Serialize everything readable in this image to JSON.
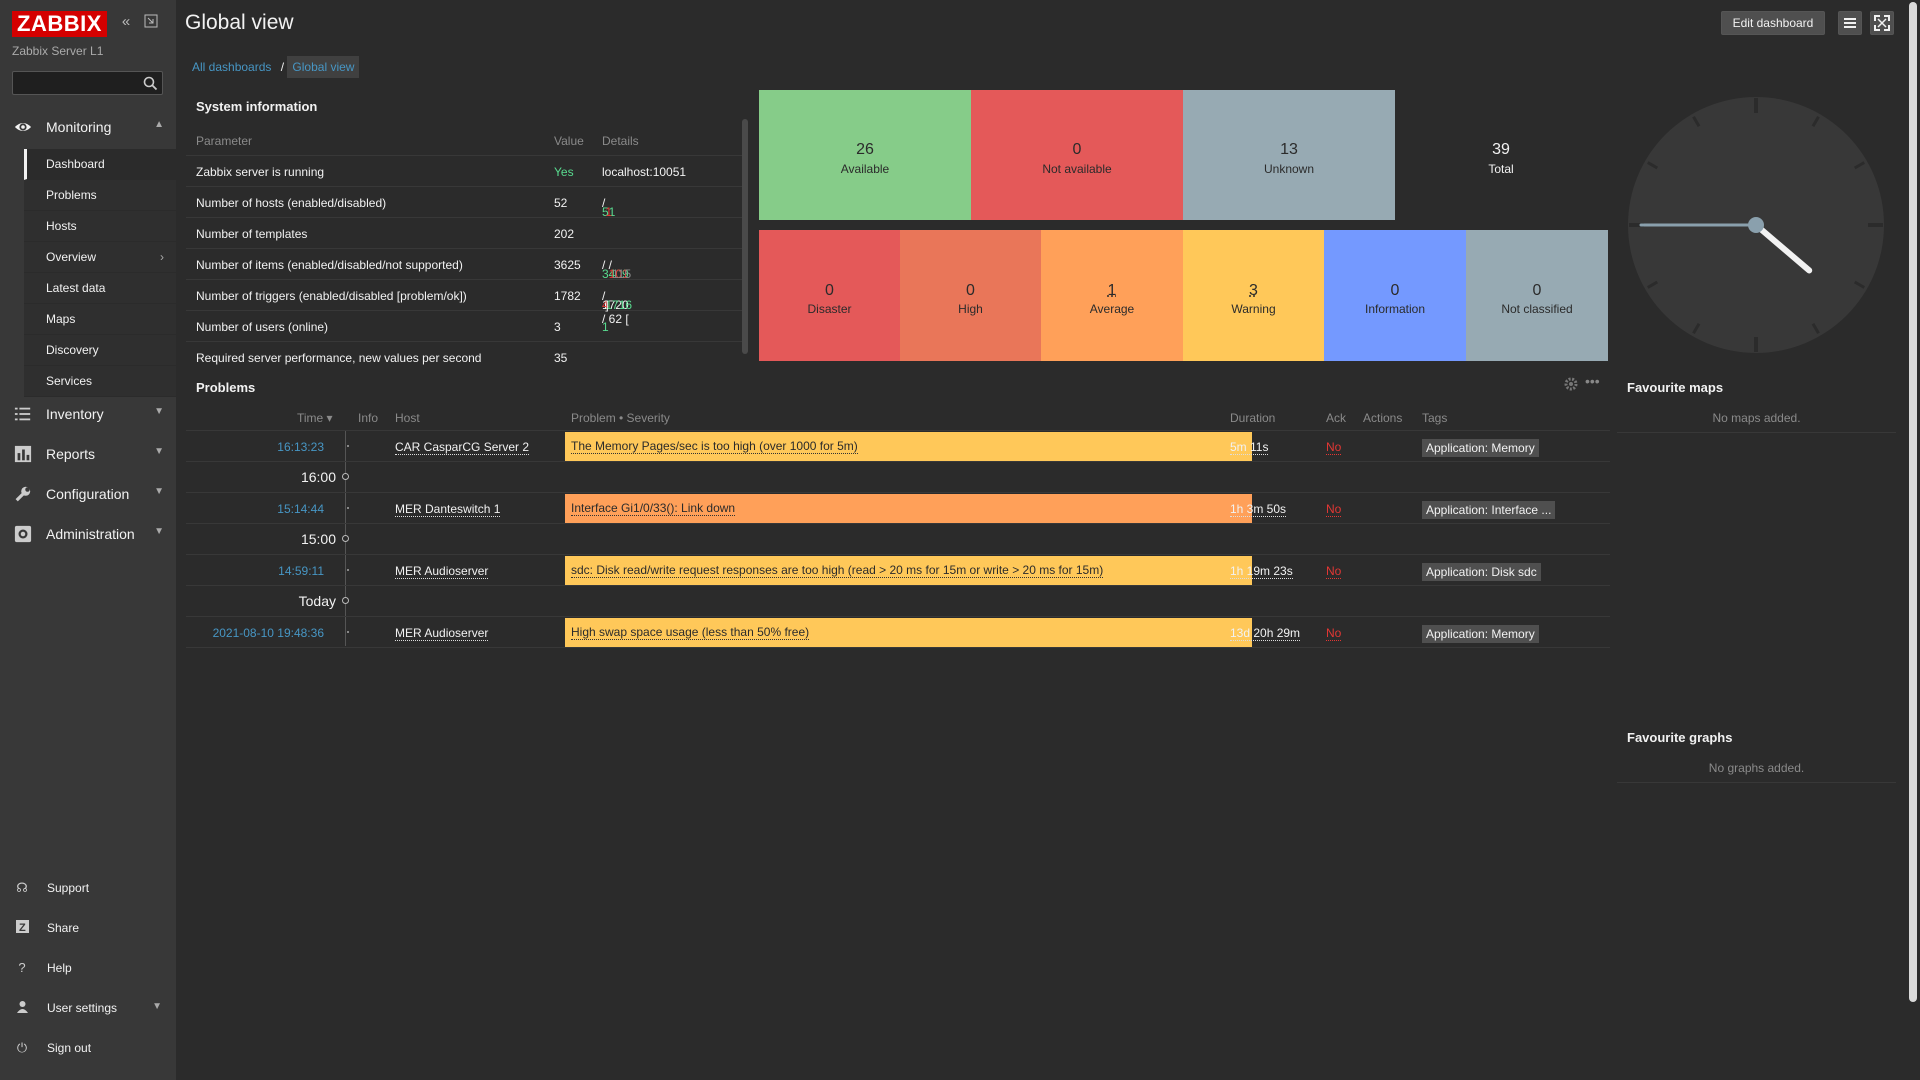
{
  "sidebar": {
    "logo": "ZABBIX",
    "server_name": "Zabbix Server L1",
    "monitoring": "Monitoring",
    "submenu": [
      "Dashboard",
      "Problems",
      "Hosts",
      "Overview",
      "Latest data",
      "Maps",
      "Discovery",
      "Services"
    ],
    "inventory": "Inventory",
    "reports": "Reports",
    "configuration": "Configuration",
    "administration": "Administration",
    "support": "Support",
    "share": "Share",
    "help": "Help",
    "user_settings": "User settings",
    "sign_out": "Sign out"
  },
  "header": {
    "title": "Global view",
    "edit_button": "Edit dashboard"
  },
  "breadcrumb": {
    "all": "All dashboards",
    "separator": "/",
    "current": "Global view"
  },
  "system_info": {
    "title": "System information",
    "headers": {
      "parameter": "Parameter",
      "value": "Value",
      "details": "Details"
    },
    "rows": [
      {
        "param": "Zabbix server is running",
        "value": "Yes",
        "details": "localhost:10051"
      },
      {
        "param": "Number of hosts (enabled/disabled)",
        "value": "52",
        "d1": "51",
        "sep": " / ",
        "d2": "1"
      },
      {
        "param": "Number of templates",
        "value": "202"
      },
      {
        "param": "Number of items (enabled/disabled/not supported)",
        "value": "3625",
        "d1": "3409",
        "d2": "101",
        "d3": "115"
      },
      {
        "param": "Number of triggers (enabled/disabled [problem/ok])",
        "value": "1782",
        "d1": "1720 / 62 [",
        "d2": "4",
        "d3": "1716",
        "d4": "]"
      },
      {
        "param": "Number of users (online)",
        "value": "3",
        "d1": "1"
      },
      {
        "param": "Required server performance, new values per second",
        "value": "35"
      }
    ]
  },
  "host_availability": [
    {
      "num": "26",
      "label": "Available",
      "color": "#86cc89"
    },
    {
      "num": "0",
      "label": "Not available",
      "color": "#e45959"
    },
    {
      "num": "13",
      "label": "Unknown",
      "color": "#97aab3"
    },
    {
      "num": "39",
      "label": "Total",
      "color": "#2b2b2b"
    }
  ],
  "problems_by_severity": [
    {
      "num": "0",
      "label": "Disaster",
      "color": "#e45959"
    },
    {
      "num": "0",
      "label": "High",
      "color": "#e97659"
    },
    {
      "num": "1",
      "label": "Average",
      "color": "#ffa059"
    },
    {
      "num": "3",
      "label": "Warning",
      "color": "#ffc859"
    },
    {
      "num": "0",
      "label": "Information",
      "color": "#7499ff"
    },
    {
      "num": "0",
      "label": "Not classified",
      "color": "#97aab3"
    }
  ],
  "problems": {
    "title": "Problems",
    "headers": {
      "time": "Time ▾",
      "info": "Info",
      "host": "Host",
      "problem": "Problem • Severity",
      "duration": "Duration",
      "ack": "Ack",
      "actions": "Actions",
      "tags": "Tags"
    },
    "rows": [
      {
        "time": "16:13:23",
        "host": "CAR CasparCG Server 2",
        "problem": "The Memory Pages/sec is too high (over 1000 for 5m)",
        "duration": "5m 11s",
        "ack": "No",
        "tag": "Application: Memory",
        "color": "#ffc859"
      },
      {
        "time": "15:14:44",
        "host": "MER Danteswitch 1",
        "problem": "Interface Gi1/0/33(): Link down",
        "duration": "1h 3m 50s",
        "ack": "No",
        "tag": "Application: Interface ...",
        "color": "#ffa059"
      },
      {
        "time": "14:59:11",
        "host": "MER Audioserver",
        "problem": "sdc: Disk read/write request responses are too high (read > 20 ms for 15m or write > 20 ms for 15m)",
        "duration": "1h 19m 23s",
        "ack": "No",
        "tag": "Application: Disk sdc",
        "color": "#ffc859"
      },
      {
        "time": "2021-08-10 19:48:36",
        "host": "MER Audioserver",
        "problem": "High swap space usage (less than 50% free)",
        "duration": "13d 20h 29m",
        "ack": "No",
        "tag": "Application: Memory",
        "color": "#ffc859"
      }
    ],
    "timeline": [
      "16:00",
      "15:00",
      "Today"
    ]
  },
  "favourite_maps": {
    "title": "Favourite maps",
    "message": "No maps added."
  },
  "favourite_graphs": {
    "title": "Favourite graphs",
    "message": "No graphs added."
  },
  "clock": {
    "hour": 4,
    "minute": 21,
    "second": 45
  }
}
